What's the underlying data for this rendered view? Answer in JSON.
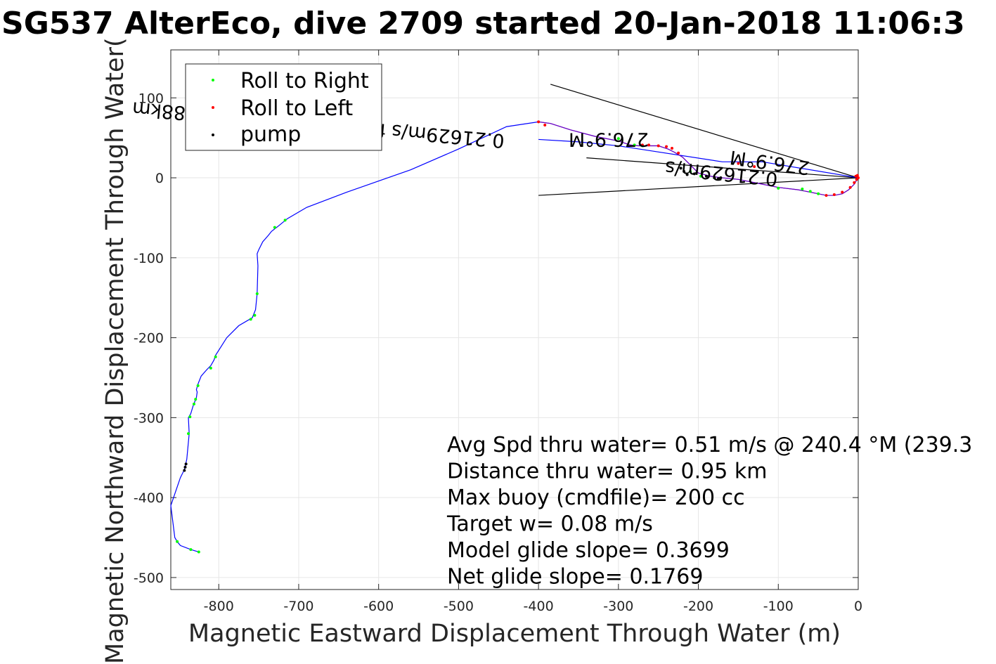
{
  "chart_data": {
    "type": "scatter",
    "title": "SG537 AlterEco, dive 2709 started 20-Jan-2018 11:06:3",
    "xlabel": "Magnetic Eastward Displacement Through Water (m)",
    "ylabel": "Magnetic Northward Displacement Through Water(",
    "xlim": [
      -860,
      0
    ],
    "ylim": [
      -515,
      160
    ],
    "xticks": [
      -800,
      -700,
      -600,
      -500,
      -400,
      -300,
      -200,
      -100,
      0
    ],
    "yticks": [
      100,
      0,
      -100,
      -200,
      -300,
      -400,
      -500
    ],
    "grid": true,
    "legend_position": "top-left",
    "legend": [
      {
        "label": "Roll to Right",
        "color": "#00ff00"
      },
      {
        "label": "Roll to Left",
        "color": "#ff0000"
      },
      {
        "label": "pump",
        "color": "#000000"
      }
    ],
    "colors": {
      "track": "#0000ff",
      "roll_right": "#00ff00",
      "roll_left": "#ff0000",
      "pump": "#000000",
      "purple": "#a000a0",
      "axis": "#262626",
      "grid": "#e6e6e6"
    },
    "track": {
      "x": [
        -825,
        -835,
        -848,
        -852,
        -855,
        -860,
        -848,
        -843,
        -840,
        -837,
        -838,
        -835,
        -832,
        -830,
        -828,
        -827,
        -828,
        -826,
        -822,
        -815,
        -810,
        -806,
        -804,
        -790,
        -775,
        -758,
        -754,
        -752,
        -751,
        -752,
        -750,
        -745,
        -738,
        -734,
        -725,
        -714,
        -690,
        -640,
        -560,
        -500,
        -440,
        -400,
        -385,
        -360,
        -330,
        -300,
        -285,
        -275,
        -262,
        -250,
        -244,
        -238,
        -230,
        -220,
        -210,
        -200,
        -185,
        -170,
        -150,
        -120,
        -100,
        -75,
        -60,
        -50,
        -40,
        -30,
        -20,
        -12,
        -5,
        -2,
        0,
        -120,
        -170,
        -300,
        -350,
        -400
      ],
      "y": [
        -468,
        -465,
        -460,
        -455,
        -450,
        -410,
        -375,
        -365,
        -352,
        -320,
        -300,
        -295,
        -285,
        -280,
        -275,
        -268,
        -265,
        -258,
        -248,
        -240,
        -235,
        -228,
        -222,
        -200,
        -185,
        -175,
        -165,
        -145,
        -110,
        -95,
        -90,
        -80,
        -72,
        -67,
        -60,
        -51,
        -37,
        -18,
        10,
        36,
        64,
        70,
        68,
        60,
        52,
        46,
        41,
        40,
        40,
        40,
        38,
        36,
        32,
        26,
        16,
        6,
        2,
        0,
        -2,
        -8,
        -12,
        -15,
        -18,
        -20,
        -22,
        -22,
        -20,
        -15,
        -8,
        -3,
        0,
        20,
        20,
        40,
        45,
        48
      ]
    },
    "roll_right": {
      "x": [
        -825,
        -835,
        -852,
        -838,
        -836,
        -831,
        -829,
        -826,
        -810,
        -804,
        -760,
        -755,
        -752,
        -730,
        -717,
        -300,
        -280,
        -270,
        -210,
        -197,
        -100,
        -70,
        -60,
        -50
      ],
      "y": [
        -468,
        -465,
        -455,
        -320,
        -299,
        -283,
        -277,
        -260,
        -238,
        -224,
        -177,
        -172,
        -145,
        -62,
        -53,
        49,
        41,
        40,
        8,
        2,
        -13,
        -14,
        -17,
        -20
      ]
    },
    "roll_left": {
      "x": [
        -400,
        -392,
        -270,
        -262,
        -250,
        -240,
        -233,
        -225,
        -150,
        -130,
        -40,
        -30,
        -20,
        -10,
        -5,
        -2,
        0,
        -1,
        -3
      ],
      "y": [
        70,
        66,
        41,
        41,
        40,
        39,
        37,
        31,
        18,
        14,
        -22,
        -21,
        -18,
        -12,
        -6,
        -2,
        0,
        3,
        2
      ]
    },
    "pump": {
      "x": [
        -843,
        -842,
        -841,
        -222,
        -218,
        -214,
        -205,
        -190,
        -180,
        -175,
        -172
      ],
      "y": [
        -366,
        -362,
        -358,
        12,
        8,
        4,
        5,
        2,
        0,
        -1,
        0
      ]
    },
    "reference_lines": [
      {
        "x": [
          -385,
          0
        ],
        "y": [
          117,
          0
        ]
      },
      {
        "x": [
          -400,
          0
        ],
        "y": [
          -22,
          0
        ]
      },
      {
        "x": [
          -340,
          0
        ],
        "y": [
          25,
          0
        ]
      }
    ],
    "annotations": [
      {
        "text": "276.9°M",
        "x": -262,
        "y": 56,
        "angle": 180
      },
      {
        "text": "0.21629m/s for0.51741hr =0.40288km",
        "x": -442,
        "y": 54,
        "angle": 185
      },
      {
        "text": "276.9°M",
        "x": -60,
        "y": 20,
        "angle": 188
      },
      {
        "text": "0.21629m/s",
        "x": -100,
        "y": 6,
        "angle": 186
      }
    ],
    "stats": [
      "Avg Spd thru water=  0.51 m/s @ 240.4 °M (239.3",
      "Distance thru water=  0.95 km",
      "Max buoy (cmdfile)= 200 cc",
      "Target w= 0.08 m/s",
      "Model glide slope= 0.3699",
      "Net glide slope= 0.1769"
    ]
  }
}
